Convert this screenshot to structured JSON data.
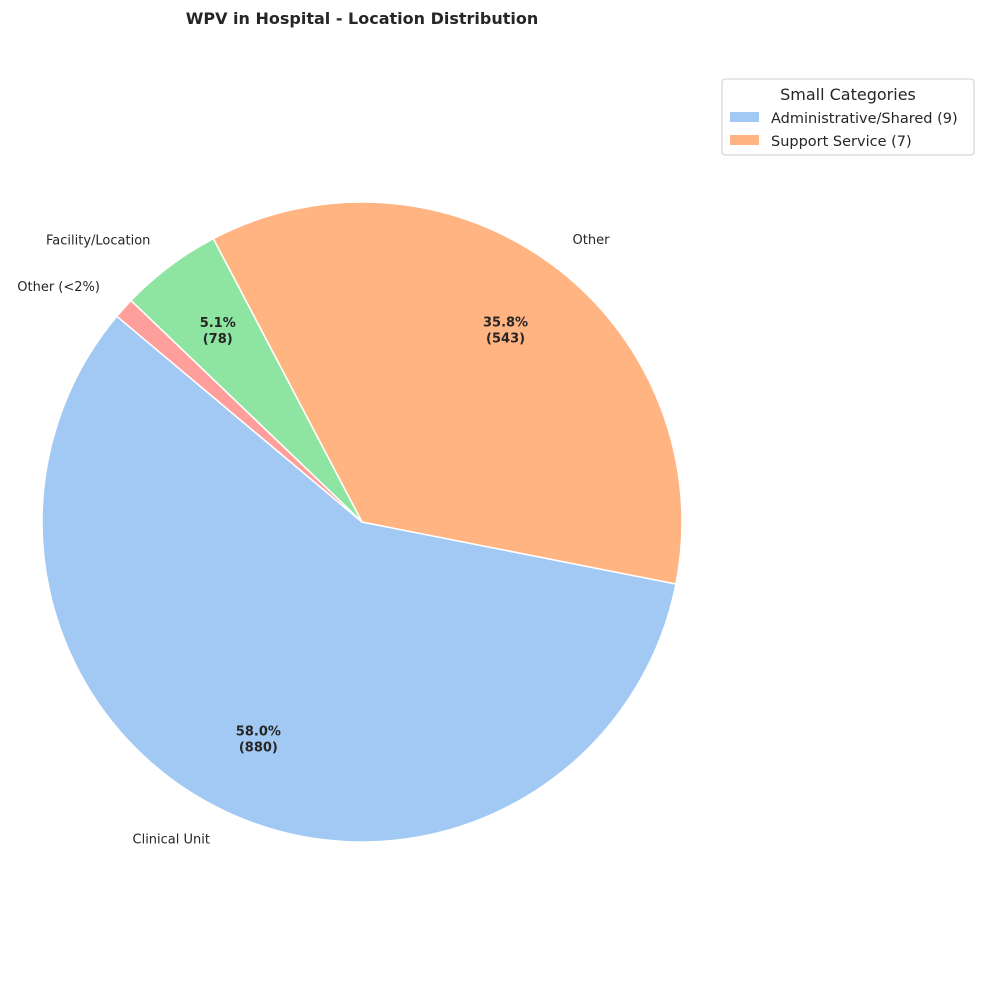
{
  "chart_data": {
    "type": "pie",
    "title": "WPV in Hospital - Location Distribution",
    "slices": [
      {
        "label": "Clinical Unit",
        "value": 880,
        "percent": 58.0,
        "pct_text": "58.0%",
        "count_text": "(880)",
        "color": "#a1c9f4",
        "show_pct": true
      },
      {
        "label": "Other",
        "value": 543,
        "percent": 35.8,
        "pct_text": "35.8%",
        "count_text": "(543)",
        "color": "#ffb482",
        "show_pct": true
      },
      {
        "label": "Facility/Location",
        "value": 78,
        "percent": 5.1,
        "pct_text": "5.1%",
        "count_text": "(78)",
        "color": "#8de5a1",
        "show_pct": true
      },
      {
        "label": "Other (<2%)",
        "value": 16,
        "percent": 1.1,
        "pct_text": "",
        "count_text": "",
        "color": "#ff9f9b",
        "show_pct": false
      }
    ],
    "legend": {
      "title": "Small Categories",
      "placement": "top-right",
      "entries": [
        {
          "label": "Administrative/Shared (9)",
          "color": "#a1c9f4"
        },
        {
          "label": "Support Service (7)",
          "color": "#ffb482"
        }
      ]
    }
  }
}
